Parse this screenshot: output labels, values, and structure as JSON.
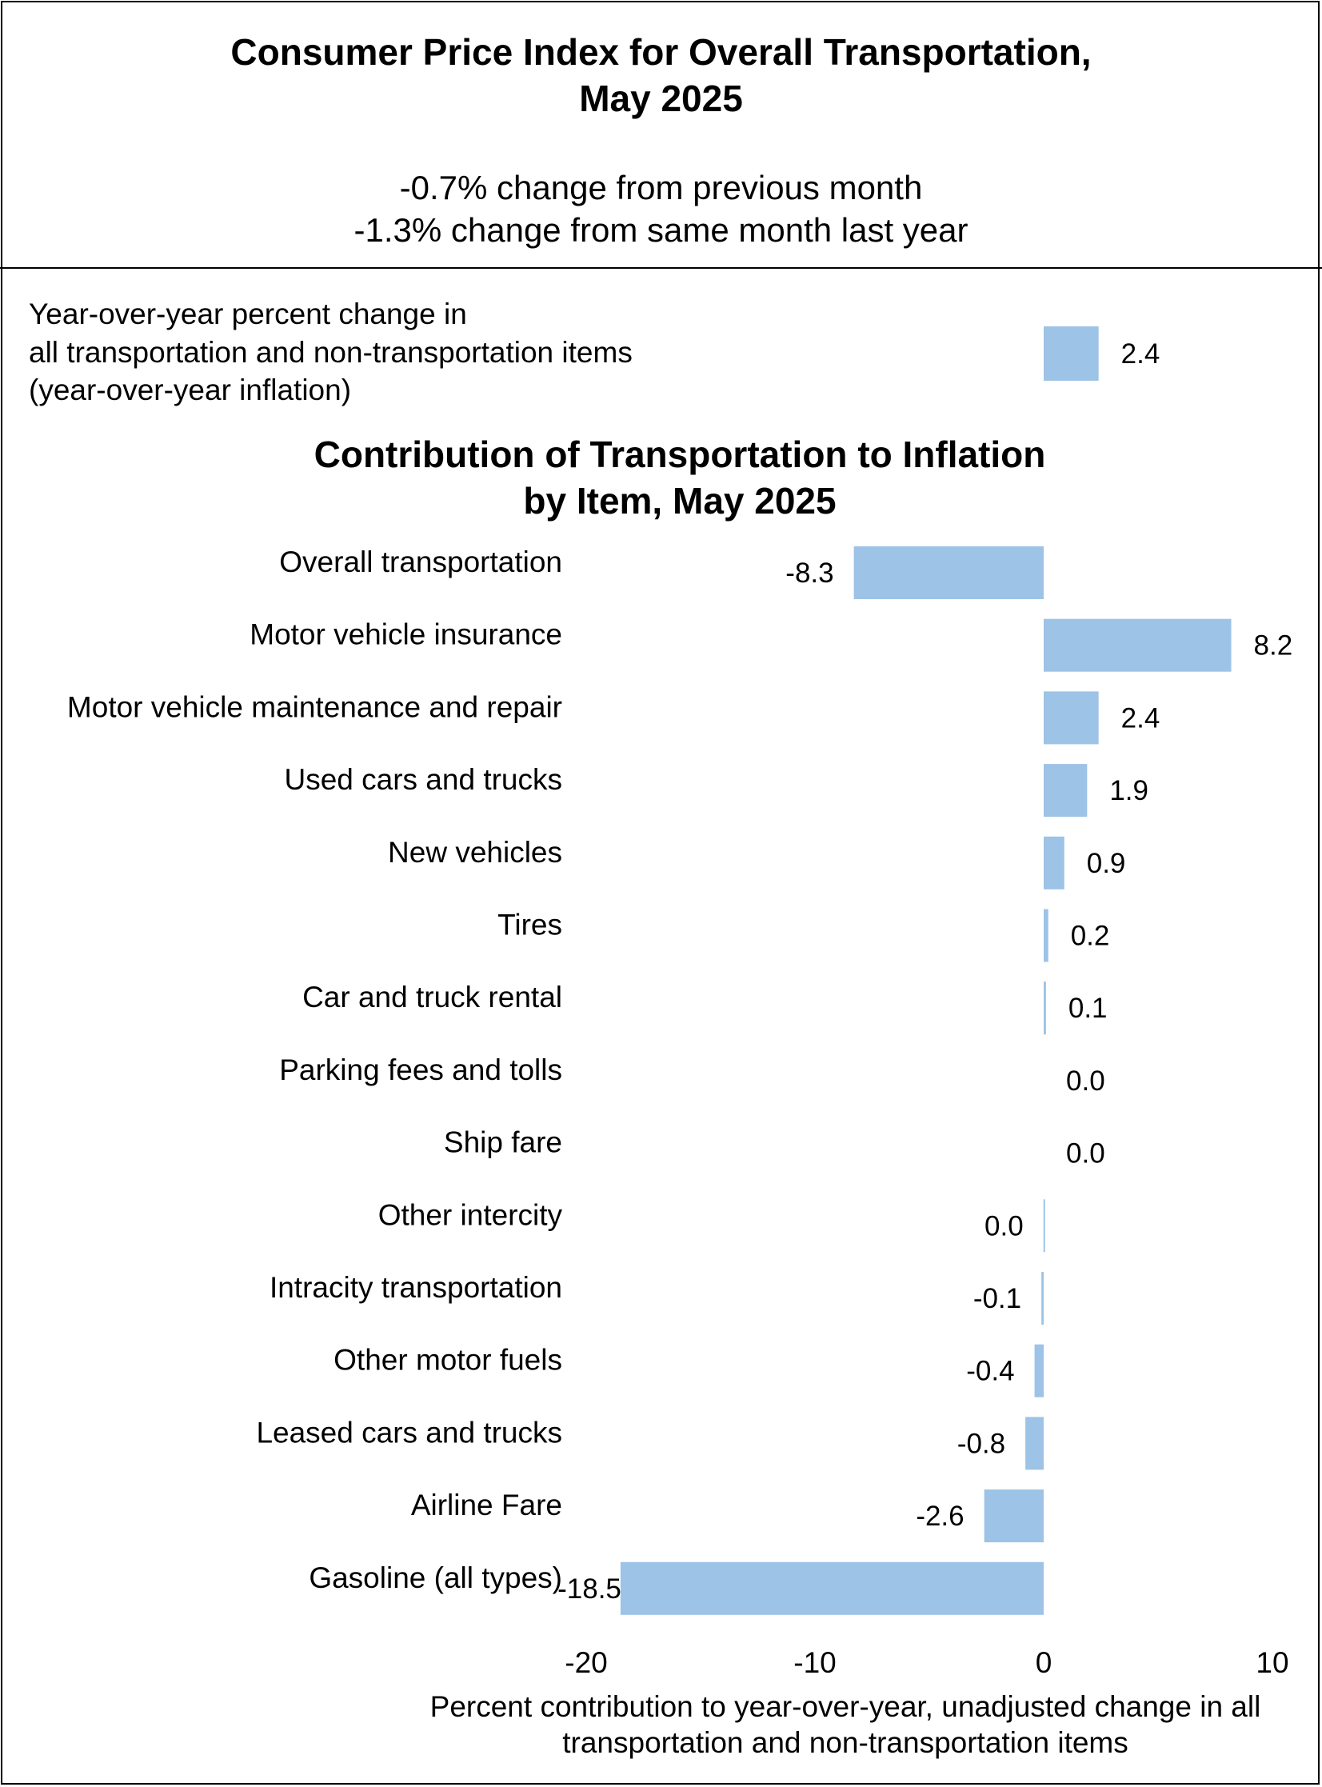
{
  "header": {
    "title_line1": "Consumer Price Index for Overall Transportation,",
    "title_line2": "May 2025",
    "change_month": "-0.7% change from previous month",
    "change_year": "-1.3% change from same month last year"
  },
  "colors": {
    "bar": "#9dc3e6",
    "text": "#000000",
    "border": "#000000"
  },
  "chart_data": [
    {
      "type": "bar",
      "orientation": "horizontal",
      "label_lines": [
        "Year-over-year percent change in",
        "all transportation and non-transportation items",
        "(year-over-year inflation)"
      ],
      "categories": [
        "Year-over-year percent change in all transportation and non-transportation items (year-over-year inflation)"
      ],
      "values": [
        2.4
      ],
      "value_labels": [
        "2.4"
      ]
    },
    {
      "type": "bar",
      "orientation": "horizontal",
      "title_lines": [
        "Contribution of Transportation to Inflation",
        "by Item, May 2025"
      ],
      "categories": [
        "Overall transportation",
        "Motor vehicle insurance",
        "Motor vehicle maintenance and repair",
        "Used cars and trucks",
        "New vehicles",
        "Tires",
        "Car and truck rental",
        "Parking fees and tolls",
        "Ship fare",
        "Other intercity",
        "Intracity transportation",
        "Other motor fuels",
        "Leased cars and trucks",
        "Airline Fare",
        "Gasoline (all types)"
      ],
      "values": [
        -8.3,
        8.2,
        2.4,
        1.9,
        0.9,
        0.2,
        0.1,
        0.0,
        0.0,
        -0.01,
        -0.1,
        -0.4,
        -0.8,
        -2.6,
        -18.5
      ],
      "value_labels": [
        "-8.3",
        "8.2",
        "2.4",
        "1.9",
        "0.9",
        "0.2",
        "0.1",
        "0.0",
        "0.0",
        "0.0",
        "-0.1",
        "-0.4",
        "-0.8",
        "-2.6",
        "-18.5"
      ],
      "xlim": [
        -20,
        10
      ],
      "xticks": [
        -20,
        -10,
        0,
        10
      ],
      "xtick_labels": [
        "-20",
        "-10",
        "0",
        "10"
      ],
      "xlabel_lines": [
        "Percent contribution to year-over-year, unadjusted change in all",
        "transportation and non-transportation items"
      ],
      "grid": false,
      "legend": "none"
    }
  ]
}
